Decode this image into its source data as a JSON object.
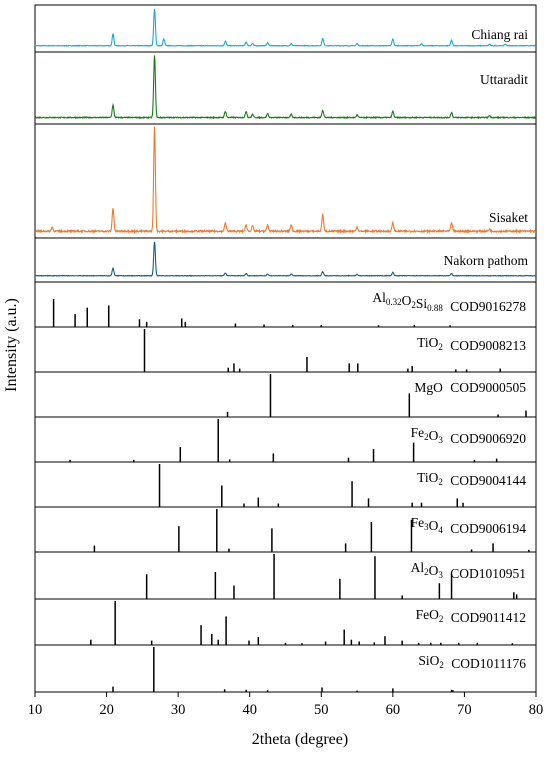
{
  "chart_data": {
    "type": "line",
    "xlabel": "2theta (degree)",
    "ylabel": "Intensity (a.u.)",
    "xlim": [
      10,
      80
    ],
    "xticks": [
      10,
      20,
      30,
      40,
      50,
      60,
      70,
      80
    ],
    "colors": {
      "chiang_rai": "#1fa8d6",
      "uttaradit": "#1a7a1a",
      "sisaket": "#f07a30",
      "nakorn_pathom": "#1b5c85",
      "reference": "#000000"
    },
    "samples": [
      {
        "name": "Chiang rai",
        "color": "#1fa8d6",
        "peaks": [
          [
            20.9,
            0.32
          ],
          [
            26.7,
            1.0
          ],
          [
            28.0,
            0.18
          ],
          [
            36.6,
            0.12
          ],
          [
            39.5,
            0.1
          ],
          [
            40.4,
            0.06
          ],
          [
            42.5,
            0.08
          ],
          [
            45.8,
            0.06
          ],
          [
            50.2,
            0.2
          ],
          [
            55.0,
            0.06
          ],
          [
            60.0,
            0.18
          ],
          [
            64.0,
            0.05
          ],
          [
            68.2,
            0.15
          ],
          [
            73.5,
            0.04
          ],
          [
            75.7,
            0.04
          ]
        ]
      },
      {
        "name": "Uttaradit",
        "color": "#1a7a1a",
        "peaks": [
          [
            20.9,
            0.2
          ],
          [
            26.7,
            1.0
          ],
          [
            36.6,
            0.1
          ],
          [
            39.5,
            0.1
          ],
          [
            40.4,
            0.05
          ],
          [
            42.5,
            0.06
          ],
          [
            45.8,
            0.05
          ],
          [
            50.2,
            0.12
          ],
          [
            55.0,
            0.04
          ],
          [
            60.0,
            0.1
          ],
          [
            68.2,
            0.08
          ],
          [
            73.5,
            0.03
          ]
        ]
      },
      {
        "name": "Sisaket",
        "color": "#f07a30",
        "peaks": [
          [
            12.4,
            0.04
          ],
          [
            20.9,
            0.22
          ],
          [
            26.7,
            1.0
          ],
          [
            36.6,
            0.08
          ],
          [
            39.5,
            0.06
          ],
          [
            40.4,
            0.05
          ],
          [
            42.5,
            0.06
          ],
          [
            45.8,
            0.06
          ],
          [
            50.2,
            0.16
          ],
          [
            55.0,
            0.04
          ],
          [
            60.0,
            0.08
          ],
          [
            68.2,
            0.08
          ],
          [
            73.5,
            0.02
          ]
        ]
      },
      {
        "name": "Nakorn pathom",
        "color": "#1b5c85",
        "peaks": [
          [
            20.9,
            0.22
          ],
          [
            26.7,
            1.0
          ],
          [
            36.6,
            0.08
          ],
          [
            39.5,
            0.07
          ],
          [
            42.5,
            0.05
          ],
          [
            45.8,
            0.05
          ],
          [
            50.2,
            0.12
          ],
          [
            55.0,
            0.04
          ],
          [
            60.0,
            0.1
          ],
          [
            68.2,
            0.06
          ]
        ]
      }
    ],
    "references": [
      {
        "label_main": "Al",
        "label_parts": [
          [
            "Al",
            ""
          ],
          [
            "0.32",
            "sub"
          ],
          [
            "O",
            ""
          ],
          [
            "2",
            "sub"
          ],
          [
            "Si",
            ""
          ],
          [
            "0.88",
            "sub"
          ]
        ],
        "code": "COD9016278",
        "sticks": [
          [
            12.6,
            0.65
          ],
          [
            15.6,
            0.3
          ],
          [
            17.3,
            0.45
          ],
          [
            20.3,
            0.5
          ],
          [
            24.6,
            0.18
          ],
          [
            25.6,
            0.12
          ],
          [
            30.5,
            0.2
          ],
          [
            31.0,
            0.12
          ],
          [
            38.0,
            0.08
          ],
          [
            42.0,
            0.06
          ],
          [
            46.0,
            0.05
          ],
          [
            50.0,
            0.05
          ],
          [
            58.0,
            0.04
          ],
          [
            63.0,
            0.05
          ],
          [
            68.0,
            0.04
          ]
        ]
      },
      {
        "label_parts": [
          [
            "TiO",
            ""
          ],
          [
            "2",
            "sub"
          ]
        ],
        "code": "COD9008213",
        "sticks": [
          [
            25.3,
            1.0
          ],
          [
            37.0,
            0.1
          ],
          [
            37.8,
            0.2
          ],
          [
            38.6,
            0.08
          ],
          [
            48.0,
            0.35
          ],
          [
            53.9,
            0.2
          ],
          [
            55.1,
            0.2
          ],
          [
            62.1,
            0.08
          ],
          [
            62.7,
            0.14
          ],
          [
            68.8,
            0.06
          ],
          [
            70.3,
            0.06
          ],
          [
            75.0,
            0.08
          ]
        ]
      },
      {
        "label_parts": [
          [
            "MgO",
            ""
          ]
        ],
        "code": "COD9000505",
        "sticks": [
          [
            36.9,
            0.12
          ],
          [
            42.9,
            1.0
          ],
          [
            62.3,
            0.55
          ],
          [
            74.7,
            0.06
          ],
          [
            78.6,
            0.15
          ]
        ]
      },
      {
        "label_parts": [
          [
            "Fe",
            ""
          ],
          [
            "2",
            "sub"
          ],
          [
            "O",
            ""
          ],
          [
            "3",
            "sub"
          ]
        ],
        "code": "COD9006920",
        "sticks": [
          [
            14.9,
            0.05
          ],
          [
            23.8,
            0.05
          ],
          [
            30.3,
            0.35
          ],
          [
            35.6,
            1.0
          ],
          [
            37.2,
            0.06
          ],
          [
            43.3,
            0.2
          ],
          [
            53.8,
            0.1
          ],
          [
            57.3,
            0.3
          ],
          [
            62.9,
            0.45
          ],
          [
            71.4,
            0.05
          ],
          [
            74.5,
            0.08
          ]
        ]
      },
      {
        "label_parts": [
          [
            "TiO",
            ""
          ],
          [
            "2",
            "sub"
          ]
        ],
        "code": "COD9004144",
        "sticks": [
          [
            27.4,
            1.0
          ],
          [
            36.1,
            0.5
          ],
          [
            39.2,
            0.08
          ],
          [
            41.2,
            0.22
          ],
          [
            44.0,
            0.08
          ],
          [
            54.3,
            0.6
          ],
          [
            56.6,
            0.2
          ],
          [
            62.7,
            0.1
          ],
          [
            64.0,
            0.1
          ],
          [
            69.0,
            0.2
          ],
          [
            69.8,
            0.1
          ]
        ]
      },
      {
        "label_parts": [
          [
            "Fe",
            ""
          ],
          [
            "3",
            "sub"
          ],
          [
            "O",
            ""
          ],
          [
            "4",
            "sub"
          ]
        ],
        "code": "COD9006194",
        "sticks": [
          [
            18.3,
            0.15
          ],
          [
            30.1,
            0.6
          ],
          [
            35.4,
            1.0
          ],
          [
            37.1,
            0.08
          ],
          [
            43.1,
            0.55
          ],
          [
            53.4,
            0.2
          ],
          [
            57.0,
            0.7
          ],
          [
            62.6,
            0.75
          ],
          [
            71.0,
            0.06
          ],
          [
            74.0,
            0.2
          ],
          [
            79.0,
            0.05
          ]
        ]
      },
      {
        "label_parts": [
          [
            "Al",
            ""
          ],
          [
            "2",
            "sub"
          ],
          [
            "O",
            ""
          ],
          [
            "3",
            "sub"
          ]
        ],
        "code": "COD1010951",
        "sticks": [
          [
            25.6,
            0.55
          ],
          [
            35.2,
            0.6
          ],
          [
            37.8,
            0.3
          ],
          [
            43.4,
            1.0
          ],
          [
            52.6,
            0.45
          ],
          [
            57.5,
            0.95
          ],
          [
            61.3,
            0.08
          ],
          [
            66.5,
            0.35
          ],
          [
            68.2,
            0.55
          ],
          [
            76.9,
            0.15
          ],
          [
            77.3,
            0.1
          ]
        ]
      },
      {
        "label_parts": [
          [
            "FeO",
            ""
          ],
          [
            "2",
            "sub"
          ]
        ],
        "code": "COD9011412",
        "sticks": [
          [
            17.8,
            0.12
          ],
          [
            21.2,
            1.0
          ],
          [
            26.3,
            0.1
          ],
          [
            33.2,
            0.45
          ],
          [
            34.7,
            0.25
          ],
          [
            35.6,
            0.12
          ],
          [
            36.7,
            0.65
          ],
          [
            39.9,
            0.1
          ],
          [
            41.2,
            0.18
          ],
          [
            45.0,
            0.05
          ],
          [
            47.3,
            0.04
          ],
          [
            50.6,
            0.08
          ],
          [
            53.2,
            0.35
          ],
          [
            54.2,
            0.12
          ],
          [
            55.3,
            0.08
          ],
          [
            57.4,
            0.06
          ],
          [
            58.9,
            0.2
          ],
          [
            61.3,
            0.1
          ],
          [
            63.6,
            0.05
          ],
          [
            65.3,
            0.05
          ],
          [
            66.7,
            0.05
          ],
          [
            69.2,
            0.05
          ],
          [
            71.8,
            0.05
          ],
          [
            76.7,
            0.04
          ]
        ]
      },
      {
        "label_parts": [
          [
            "SiO",
            ""
          ],
          [
            "2",
            "sub"
          ]
        ],
        "code": "COD1011176",
        "sticks": [
          [
            20.9,
            0.12
          ],
          [
            26.6,
            1.0
          ],
          [
            36.5,
            0.06
          ],
          [
            39.5,
            0.05
          ],
          [
            42.5,
            0.04
          ],
          [
            50.1,
            0.1
          ],
          [
            55.0,
            0.03
          ],
          [
            60.0,
            0.08
          ],
          [
            68.2,
            0.05
          ],
          [
            68.4,
            0.04
          ]
        ]
      }
    ]
  }
}
